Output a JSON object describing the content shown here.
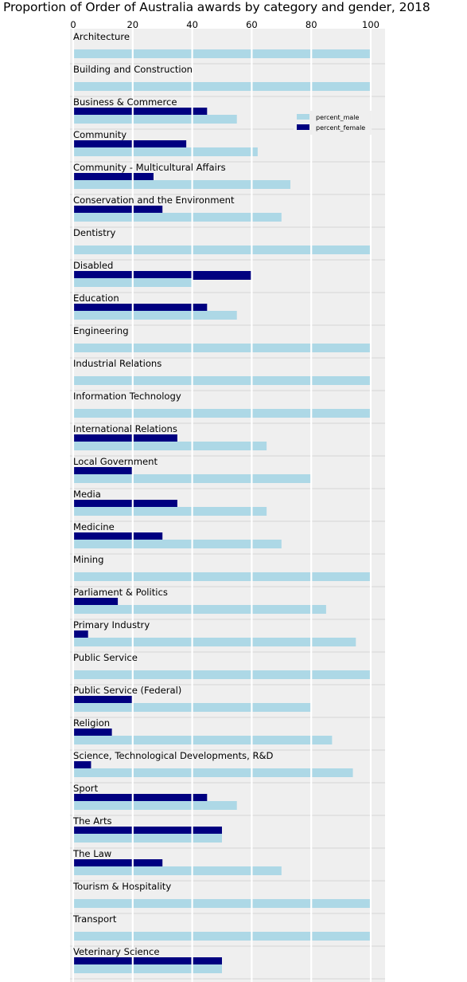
{
  "chart_data": {
    "type": "bar",
    "orientation": "horizontal",
    "title": "Proportion of Order of Australia awards by category and gender, 2018",
    "xlabel": "",
    "ylabel": "",
    "xlim": [
      0,
      105
    ],
    "xticks": [
      0,
      20,
      40,
      60,
      80,
      100
    ],
    "grid": true,
    "legend_position": "upper-right",
    "categories": [
      "Architecture",
      "Building and Construction",
      "Business & Commerce",
      "Community",
      "Community - Multicultural Affairs",
      "Conservation and the Environment",
      "Dentistry",
      "Disabled",
      "Education",
      "Engineering",
      "Industrial Relations",
      "Information Technology",
      "International Relations",
      "Local Government",
      "Media",
      "Medicine",
      "Mining",
      "Parliament & Politics",
      "Primary Industry",
      "Public Service",
      "Public Service (Federal)",
      "Religion",
      "Science, Technological Developments, R&D",
      "Sport",
      "The Arts",
      "The Law",
      "Tourism & Hospitality",
      "Transport",
      "Veterinary Science"
    ],
    "series": [
      {
        "name": "percent_male",
        "color": "#add8e6",
        "values": [
          100,
          100,
          55,
          62,
          73,
          70,
          100,
          40,
          55,
          100,
          100,
          100,
          65,
          80,
          65,
          70,
          100,
          85,
          95,
          100,
          80,
          87,
          94,
          55,
          50,
          70,
          100,
          100,
          50
        ]
      },
      {
        "name": "percent_female",
        "color": "#000080",
        "values": [
          0,
          0,
          45,
          38,
          27,
          30,
          0,
          60,
          45,
          0,
          0,
          0,
          35,
          20,
          35,
          30,
          0,
          15,
          5,
          0,
          20,
          13,
          6,
          45,
          50,
          30,
          0,
          0,
          50
        ]
      }
    ]
  }
}
